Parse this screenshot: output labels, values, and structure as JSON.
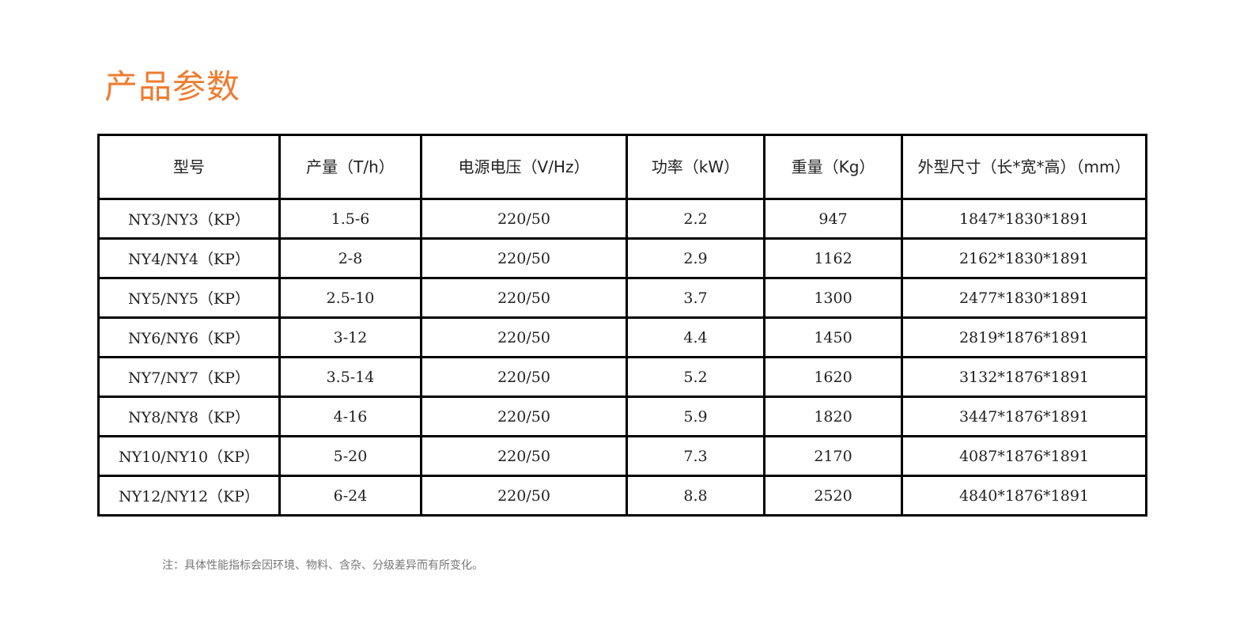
{
  "title": "产品参数",
  "headers": [
    "型号",
    "产量（T/h）",
    "电源电压（V/Hz）",
    "功率（kW）",
    "重量（Kg）",
    "外型尺寸（长*宽*高）（mm）"
  ],
  "rows": [
    [
      "NY3/NY3（KP）",
      "1.5-6",
      "220/50",
      "2.2",
      "947",
      "1847*1830*1891"
    ],
    [
      "NY4/NY4（KP）",
      "2-8",
      "220/50",
      "2.9",
      "1162",
      "2162*1830*1891"
    ],
    [
      "NY5/NY5（KP）",
      "2.5-10",
      "220/50",
      "3.7",
      "1300",
      "2477*1830*1891"
    ],
    [
      "NY6/NY6（KP）",
      "3-12",
      "220/50",
      "4.4",
      "1450",
      "2819*1876*1891"
    ],
    [
      "NY7/NY7（KP）",
      "3.5-14",
      "220/50",
      "5.2",
      "1620",
      "3132*1876*1891"
    ],
    [
      "NY8/NY8（KP）",
      "4-16",
      "220/50",
      "5.9",
      "1820",
      "3447*1876*1891"
    ],
    [
      "NY10/NY10（KP）",
      "5-20",
      "220/50",
      "7.3",
      "2170",
      "4087*1876*1891"
    ],
    [
      "NY12/NY12（KP）",
      "6-24",
      "220/50",
      "8.8",
      "2520",
      "4840*1876*1891"
    ]
  ],
  "note": "注：具体性能指标会因环境、物料、含杂、分级差异而有所变化。"
}
